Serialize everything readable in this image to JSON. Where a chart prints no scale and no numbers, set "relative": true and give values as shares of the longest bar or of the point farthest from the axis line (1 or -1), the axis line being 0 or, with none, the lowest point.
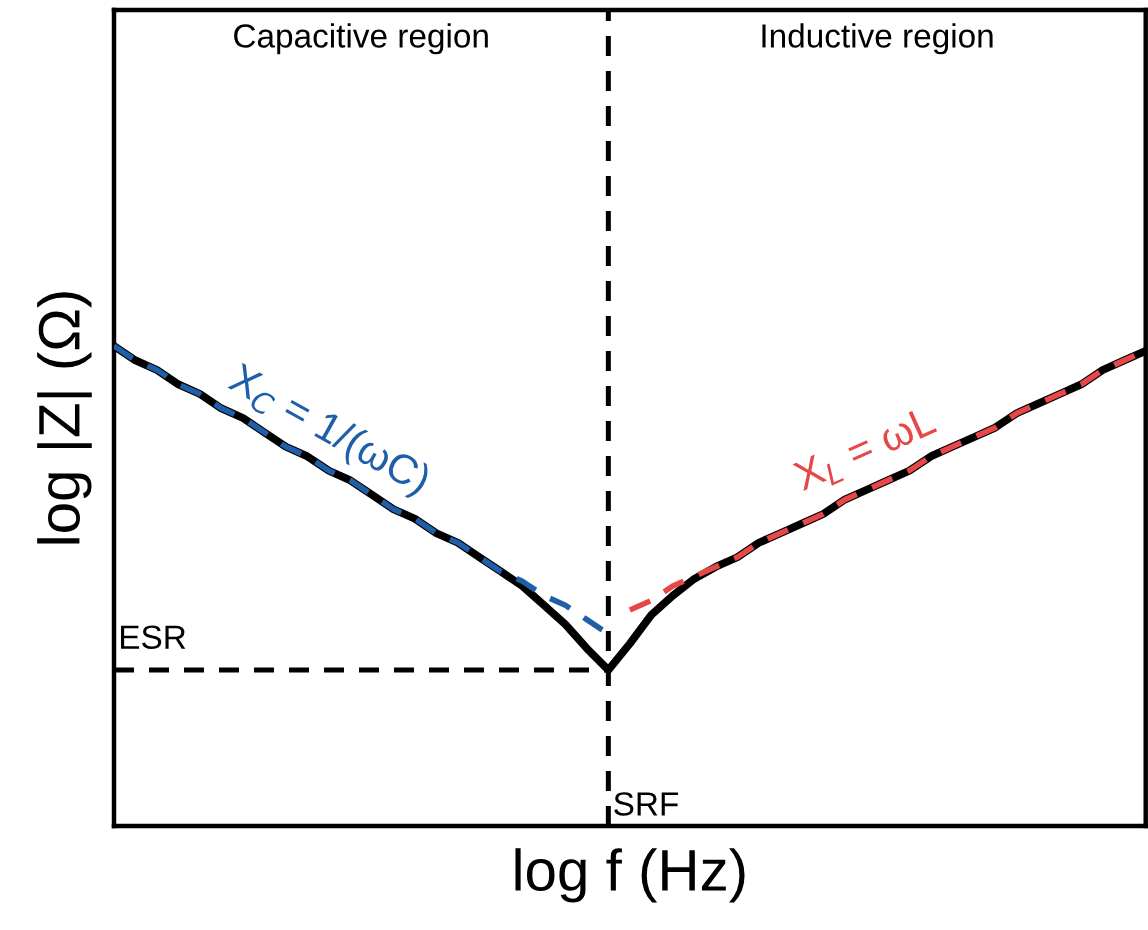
{
  "chart_data": {
    "type": "line",
    "relative": true,
    "xlabel": "log f (Hz)",
    "ylabel": "log |Z| (Ω)",
    "annotations": [
      "Capacitive region",
      "Inductive region",
      "SRF"
    ],
    "categories": [
      null,
      null,
      null,
      null,
      null,
      null,
      null,
      null,
      null,
      null,
      null,
      null,
      null,
      null,
      null,
      null,
      null,
      null,
      null,
      null,
      null,
      null,
      null,
      null,
      null,
      null,
      null,
      null,
      null,
      null,
      null,
      null,
      null,
      null,
      null,
      null,
      null,
      null,
      null,
      null,
      null,
      null,
      null,
      null,
      null,
      null,
      null,
      null,
      null
    ],
    "series": [
      {
        "color": "#000000",
        "line_style": "solid",
        "values": [
          1.0,
          0.97,
          0.95,
          0.92,
          0.9,
          0.87,
          0.85,
          0.82,
          0.79,
          0.77,
          0.74,
          0.72,
          0.69,
          0.66,
          0.64,
          0.61,
          0.59,
          0.56,
          0.53,
          0.5,
          0.46,
          0.42,
          0.37,
          0.325,
          0.38,
          0.44,
          0.48,
          0.515,
          0.54,
          0.56,
          0.59,
          0.61,
          0.63,
          0.65,
          0.68,
          0.7,
          0.72,
          0.74,
          0.77,
          0.79,
          0.81,
          0.83,
          0.86,
          0.88,
          0.9,
          0.92,
          0.95,
          0.97,
          0.99
        ]
      },
      {
        "name": "X$_{C}$ = 1/(ωC)",
        "color": "#1f5fa8",
        "line_style": "dashed",
        "values": [
          1.0,
          0.97,
          0.95,
          0.92,
          0.9,
          0.87,
          0.85,
          0.82,
          0.79,
          0.77,
          0.74,
          0.72,
          0.69,
          0.66,
          0.64,
          0.61,
          0.59,
          0.56,
          0.53,
          0.51,
          0.48,
          0.46,
          0.43,
          0.4,
          null,
          null,
          null,
          null,
          null,
          null,
          null,
          null,
          null,
          null,
          null,
          null,
          null,
          null,
          null,
          null,
          null,
          null,
          null,
          null,
          null,
          null,
          null,
          null,
          null
        ]
      },
      {
        "name": "X$_{L}$ = ωL",
        "color": "#e8474a",
        "line_style": "dashed",
        "values": [
          null,
          null,
          null,
          null,
          null,
          null,
          null,
          null,
          null,
          null,
          null,
          null,
          null,
          null,
          null,
          null,
          null,
          null,
          null,
          null,
          null,
          null,
          null,
          null,
          0.45,
          0.47,
          0.5,
          0.52,
          0.54,
          0.56,
          0.59,
          0.61,
          0.63,
          0.65,
          0.68,
          0.7,
          0.72,
          0.74,
          0.77,
          0.79,
          0.81,
          0.83,
          0.86,
          0.88,
          0.9,
          0.92,
          0.95,
          0.97,
          0.99
        ]
      }
    ],
    "ref_lines": [
      {
        "axis": "y",
        "value": 0.325,
        "label": "ESR",
        "color": "#000000",
        "line_style": "dashed"
      }
    ]
  }
}
